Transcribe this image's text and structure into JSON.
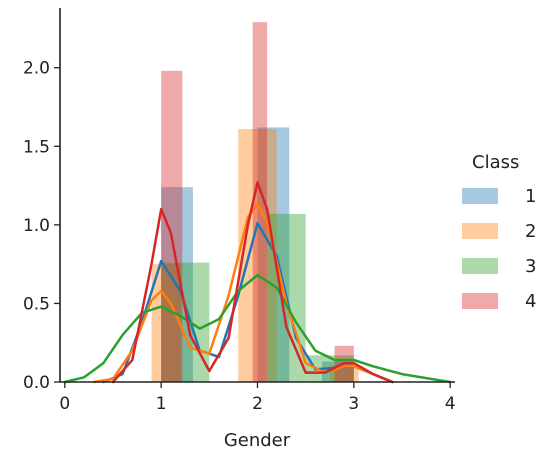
{
  "chart_data": {
    "type": "histogram-kde",
    "title": "",
    "xlabel": "Gender",
    "ylabel": "",
    "xlim": [
      -0.05,
      4.05
    ],
    "ylim": [
      0,
      2.38
    ],
    "x_ticks": [
      0,
      1,
      2,
      3,
      4
    ],
    "x_tick_labels": [
      "0",
      "1",
      "2",
      "3",
      "4"
    ],
    "y_ticks": [
      0.0,
      0.5,
      1.0,
      1.5,
      2.0
    ],
    "y_tick_labels": [
      "0.0",
      "0.5",
      "1.0",
      "1.5",
      "2.0"
    ],
    "grid": false,
    "legend": {
      "title": "Class",
      "placement": "right"
    },
    "series": [
      {
        "name": "1",
        "color": "#1f77b4",
        "bars": [
          {
            "x0": 1.0,
            "x1": 1.33,
            "height": 1.24
          },
          {
            "x0": 2.0,
            "x1": 2.33,
            "height": 1.62
          },
          {
            "x0": 2.67,
            "x1": 3.0,
            "height": 0.13
          }
        ],
        "kde": [
          [
            0.4,
            0.0
          ],
          [
            0.6,
            0.05
          ],
          [
            0.8,
            0.38
          ],
          [
            1.0,
            0.77
          ],
          [
            1.2,
            0.58
          ],
          [
            1.4,
            0.2
          ],
          [
            1.6,
            0.16
          ],
          [
            1.8,
            0.55
          ],
          [
            2.0,
            1.01
          ],
          [
            2.2,
            0.8
          ],
          [
            2.4,
            0.28
          ],
          [
            2.6,
            0.08
          ],
          [
            2.8,
            0.09
          ],
          [
            3.0,
            0.1
          ],
          [
            3.2,
            0.05
          ],
          [
            3.4,
            0.0
          ]
        ]
      },
      {
        "name": "2",
        "color": "#ff7f0e",
        "bars": [
          {
            "x0": 0.9,
            "x1": 1.2,
            "height": 0.75
          },
          {
            "x0": 1.8,
            "x1": 2.2,
            "height": 1.61
          },
          {
            "x0": 2.75,
            "x1": 3.05,
            "height": 0.11
          }
        ],
        "kde": [
          [
            0.3,
            0.0
          ],
          [
            0.5,
            0.02
          ],
          [
            0.7,
            0.2
          ],
          [
            0.9,
            0.52
          ],
          [
            1.0,
            0.58
          ],
          [
            1.1,
            0.5
          ],
          [
            1.3,
            0.22
          ],
          [
            1.5,
            0.18
          ],
          [
            1.7,
            0.55
          ],
          [
            1.9,
            1.05
          ],
          [
            2.0,
            1.13
          ],
          [
            2.1,
            1.02
          ],
          [
            2.3,
            0.5
          ],
          [
            2.5,
            0.12
          ],
          [
            2.7,
            0.06
          ],
          [
            2.9,
            0.1
          ],
          [
            3.0,
            0.1
          ],
          [
            3.2,
            0.05
          ],
          [
            3.4,
            0.0
          ]
        ]
      },
      {
        "name": "3",
        "color": "#2ca02c",
        "bars": [
          {
            "x0": 1.0,
            "x1": 1.5,
            "height": 0.76
          },
          {
            "x0": 2.1,
            "x1": 2.5,
            "height": 1.07
          },
          {
            "x0": 2.5,
            "x1": 3.0,
            "height": 0.17
          }
        ],
        "kde": [
          [
            0.0,
            0.0
          ],
          [
            0.2,
            0.03
          ],
          [
            0.4,
            0.12
          ],
          [
            0.6,
            0.3
          ],
          [
            0.8,
            0.44
          ],
          [
            1.0,
            0.48
          ],
          [
            1.2,
            0.42
          ],
          [
            1.4,
            0.34
          ],
          [
            1.6,
            0.4
          ],
          [
            1.8,
            0.58
          ],
          [
            2.0,
            0.68
          ],
          [
            2.2,
            0.6
          ],
          [
            2.4,
            0.38
          ],
          [
            2.6,
            0.2
          ],
          [
            2.8,
            0.14
          ],
          [
            3.0,
            0.14
          ],
          [
            3.2,
            0.1
          ],
          [
            3.5,
            0.05
          ],
          [
            3.8,
            0.02
          ],
          [
            4.0,
            0.0
          ]
        ]
      },
      {
        "name": "4",
        "color": "#d62728",
        "bars": [
          {
            "x0": 1.0,
            "x1": 1.22,
            "height": 1.98
          },
          {
            "x0": 1.95,
            "x1": 2.1,
            "height": 2.29
          },
          {
            "x0": 2.8,
            "x1": 3.0,
            "height": 0.23
          }
        ],
        "kde": [
          [
            0.5,
            0.0
          ],
          [
            0.7,
            0.14
          ],
          [
            0.9,
            0.75
          ],
          [
            1.0,
            1.1
          ],
          [
            1.1,
            0.95
          ],
          [
            1.3,
            0.3
          ],
          [
            1.5,
            0.07
          ],
          [
            1.7,
            0.28
          ],
          [
            1.9,
            1.0
          ],
          [
            2.0,
            1.27
          ],
          [
            2.1,
            1.1
          ],
          [
            2.3,
            0.35
          ],
          [
            2.5,
            0.06
          ],
          [
            2.7,
            0.06
          ],
          [
            2.9,
            0.12
          ],
          [
            3.0,
            0.12
          ],
          [
            3.2,
            0.05
          ],
          [
            3.4,
            0.0
          ]
        ]
      }
    ]
  }
}
